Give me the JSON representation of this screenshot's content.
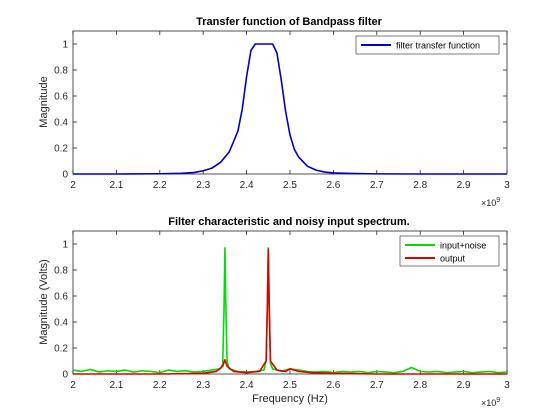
{
  "chart_data": [
    {
      "type": "line",
      "title": "Transfer function of Bandpass filter",
      "xlabel": "",
      "ylabel": "Magnitude",
      "xlim": [
        2000000000,
        3000000000
      ],
      "ylim": [
        0,
        1.1
      ],
      "x_exponent_label": "×10",
      "x_exponent_power": "9",
      "x_tick_labels": [
        "2",
        "2.1",
        "2.2",
        "2.3",
        "2.4",
        "2.5",
        "2.6",
        "2.7",
        "2.8",
        "2.9",
        "3"
      ],
      "y_tick_labels": [
        "0",
        "0.2",
        "0.4",
        "0.6",
        "0.8",
        "1"
      ],
      "legend_position": "top-right",
      "series": [
        {
          "name": "filter transfer function",
          "color": "#0000cc",
          "x": [
            2000000000.0,
            2100000000.0,
            2200000000.0,
            2250000000.0,
            2280000000.0,
            2300000000.0,
            2320000000.0,
            2340000000.0,
            2360000000.0,
            2380000000.0,
            2390000000.0,
            2400000000.0,
            2410000000.0,
            2420000000.0,
            2430000000.0,
            2440000000.0,
            2450000000.0,
            2460000000.0,
            2470000000.0,
            2480000000.0,
            2490000000.0,
            2500000000.0,
            2510000000.0,
            2520000000.0,
            2540000000.0,
            2560000000.0,
            2580000000.0,
            2600000000.0,
            2650000000.0,
            2700000000.0,
            2800000000.0,
            2900000000.0,
            3000000000.0
          ],
          "y": [
            0.0,
            0.0,
            0.002,
            0.005,
            0.012,
            0.025,
            0.045,
            0.09,
            0.17,
            0.33,
            0.5,
            0.75,
            0.95,
            1.0,
            1.0,
            1.0,
            1.0,
            1.0,
            0.93,
            0.72,
            0.48,
            0.3,
            0.19,
            0.13,
            0.06,
            0.03,
            0.015,
            0.008,
            0.003,
            0.001,
            0.0,
            0.0,
            0.0
          ]
        }
      ]
    },
    {
      "type": "line",
      "title": "Filter characteristic and noisy input spectrum.",
      "xlabel": "Frequency (Hz)",
      "ylabel": "Magnitude (Volts)",
      "xlim": [
        2000000000,
        3000000000
      ],
      "ylim": [
        0,
        1.1
      ],
      "x_exponent_label": "×10",
      "x_exponent_power": "9",
      "x_tick_labels": [
        "2",
        "2.1",
        "2.2",
        "2.3",
        "2.4",
        "2.5",
        "2.6",
        "2.7",
        "2.8",
        "2.9",
        "3"
      ],
      "y_tick_labels": [
        "0",
        "0.2",
        "0.4",
        "0.6",
        "0.8",
        "1"
      ],
      "legend_position": "top-right",
      "series": [
        {
          "name": "input+noise",
          "color": "#00dd00",
          "x": [
            2000000000.0,
            2020000000.0,
            2040000000.0,
            2060000000.0,
            2080000000.0,
            2100000000.0,
            2120000000.0,
            2140000000.0,
            2160000000.0,
            2180000000.0,
            2200000000.0,
            2220000000.0,
            2240000000.0,
            2260000000.0,
            2280000000.0,
            2300000000.0,
            2320000000.0,
            2340000000.0,
            2345000000.0,
            2348000000.0,
            2350000000.0,
            2352000000.0,
            2355000000.0,
            2360000000.0,
            2380000000.0,
            2400000000.0,
            2420000000.0,
            2440000000.0,
            2445000000.0,
            2448000000.0,
            2450000000.0,
            2452000000.0,
            2455000000.0,
            2460000000.0,
            2480000000.0,
            2500000000.0,
            2520000000.0,
            2540000000.0,
            2560000000.0,
            2580000000.0,
            2600000000.0,
            2620000000.0,
            2640000000.0,
            2660000000.0,
            2680000000.0,
            2700000000.0,
            2720000000.0,
            2740000000.0,
            2760000000.0,
            2780000000.0,
            2800000000.0,
            2820000000.0,
            2840000000.0,
            2860000000.0,
            2880000000.0,
            2900000000.0,
            2920000000.0,
            2940000000.0,
            2960000000.0,
            2980000000.0,
            3000000000.0
          ],
          "y": [
            0.03,
            0.02,
            0.035,
            0.015,
            0.025,
            0.02,
            0.03,
            0.015,
            0.025,
            0.02,
            0.01,
            0.03,
            0.02,
            0.025,
            0.015,
            0.02,
            0.03,
            0.04,
            0.08,
            0.5,
            0.97,
            0.55,
            0.1,
            0.04,
            0.02,
            0.015,
            0.02,
            0.03,
            0.1,
            0.55,
            0.97,
            0.5,
            0.08,
            0.04,
            0.02,
            0.04,
            0.03,
            0.02,
            0.015,
            0.02,
            0.01,
            0.02,
            0.015,
            0.02,
            0.01,
            0.02,
            0.015,
            0.01,
            0.02,
            0.05,
            0.02,
            0.015,
            0.02,
            0.01,
            0.015,
            0.02,
            0.01,
            0.015,
            0.02,
            0.01,
            0.015
          ]
        },
        {
          "name": "output",
          "color": "#dd0000",
          "x": [
            2000000000.0,
            2100000000.0,
            2200000000.0,
            2300000000.0,
            2330000000.0,
            2345000000.0,
            2350000000.0,
            2355000000.0,
            2370000000.0,
            2400000000.0,
            2430000000.0,
            2445000000.0,
            2448000000.0,
            2450000000.0,
            2452000000.0,
            2455000000.0,
            2470000000.0,
            2490000000.0,
            2500000000.0,
            2520000000.0,
            2550000000.0,
            2600000000.0,
            2700000000.0,
            2800000000.0,
            2900000000.0,
            3000000000.0
          ],
          "y": [
            0.0,
            0.0,
            0.0,
            0.005,
            0.02,
            0.06,
            0.11,
            0.06,
            0.02,
            0.01,
            0.02,
            0.1,
            0.55,
            0.96,
            0.55,
            0.1,
            0.03,
            0.02,
            0.04,
            0.02,
            0.01,
            0.005,
            0.0,
            0.0,
            0.0,
            0.0
          ]
        }
      ]
    }
  ]
}
